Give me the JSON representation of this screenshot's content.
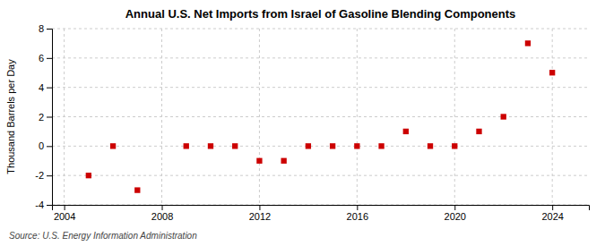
{
  "chart_data": {
    "type": "scatter",
    "title": "Annual U.S. Net Imports from Israel of Gasoline Blending Components",
    "ylabel": "Thousand Barrels per Day",
    "annotations": [
      "Source: U.S. Energy Information Administration"
    ],
    "x": [
      2005,
      2006,
      2007,
      2009,
      2010,
      2011,
      2012,
      2013,
      2014,
      2015,
      2016,
      2017,
      2018,
      2019,
      2020,
      2021,
      2022,
      2023,
      2024
    ],
    "values": [
      -2,
      0,
      -3,
      0,
      0,
      0,
      -1,
      -1,
      0,
      0,
      0,
      0,
      1,
      0,
      0,
      1,
      2,
      7,
      5
    ],
    "xlim": [
      2003.5,
      2025.5
    ],
    "ylim": [
      -4,
      8
    ],
    "xticks": [
      2004,
      2008,
      2012,
      2016,
      2020,
      2024
    ],
    "yticks": [
      -4,
      -2,
      0,
      2,
      4,
      6,
      8
    ],
    "color": "#cc0000",
    "marker": "square",
    "grid": true
  }
}
